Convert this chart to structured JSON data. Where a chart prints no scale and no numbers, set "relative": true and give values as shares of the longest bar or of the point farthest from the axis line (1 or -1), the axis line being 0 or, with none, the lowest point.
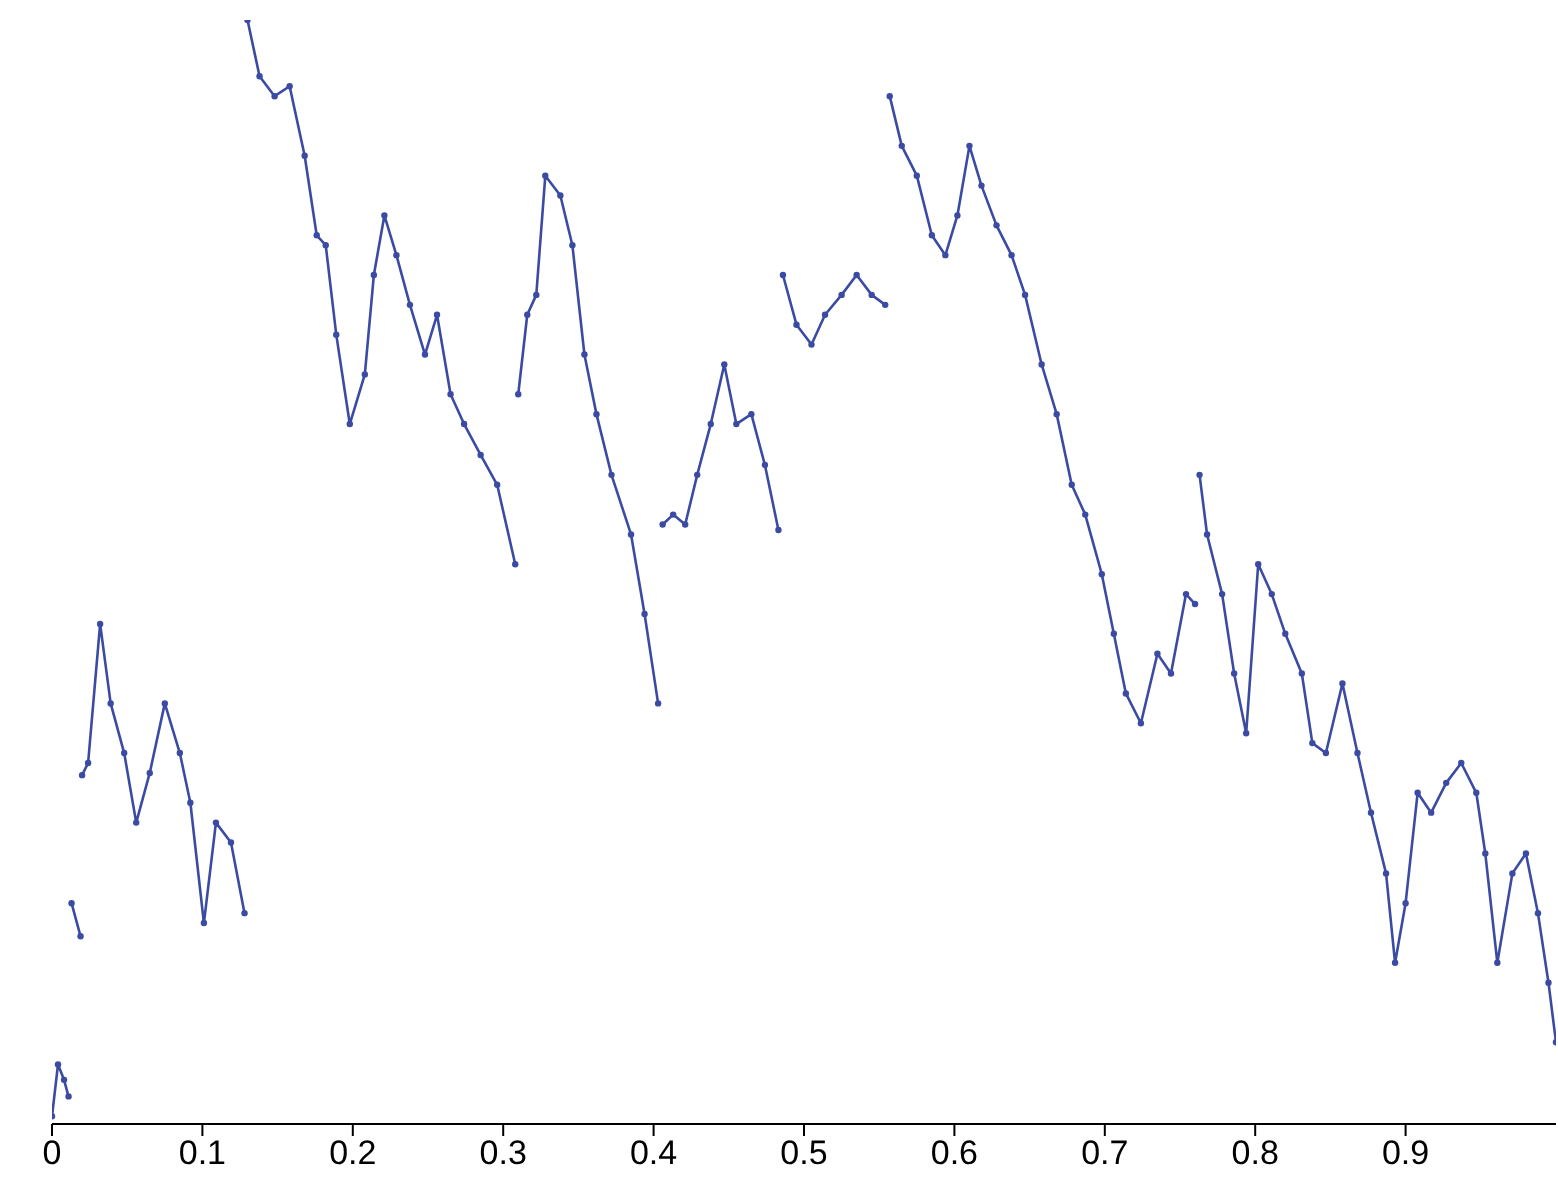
{
  "chart_data": {
    "type": "line",
    "relative": true,
    "xlim": [
      0,
      1
    ],
    "xticks": [
      0,
      0.1,
      0.2,
      0.3,
      0.4,
      0.5,
      0.6,
      0.7,
      0.8,
      0.9
    ],
    "grid": false,
    "legend": false,
    "marker": "circle",
    "line_style": "solid",
    "x": [
      0,
      0.004,
      0.008,
      0.011,
      0.012,
      0.013,
      0.019,
      0.0195,
      0.02,
      0.024,
      0.032,
      0.039,
      0.048,
      0.056,
      0.065,
      0.075,
      0.085,
      0.092,
      0.101,
      0.109,
      0.119,
      0.128,
      0.129,
      0.13,
      0.138,
      0.148,
      0.158,
      0.168,
      0.176,
      0.182,
      0.189,
      0.198,
      0.208,
      0.214,
      0.221,
      0.229,
      0.238,
      0.248,
      0.256,
      0.265,
      0.274,
      0.285,
      0.296,
      0.308,
      0.309,
      0.31,
      0.316,
      0.322,
      0.328,
      0.338,
      0.346,
      0.354,
      0.362,
      0.372,
      0.385,
      0.394,
      0.403,
      0.404,
      0.406,
      0.413,
      0.421,
      0.429,
      0.438,
      0.447,
      0.455,
      0.465,
      0.474,
      0.483,
      0.484,
      0.486,
      0.495,
      0.505,
      0.514,
      0.525,
      0.535,
      0.545,
      0.554,
      0.555,
      0.557,
      0.565,
      0.575,
      0.585,
      0.594,
      0.602,
      0.61,
      0.618,
      0.628,
      0.638,
      0.647,
      0.658,
      0.668,
      0.678,
      0.687,
      0.698,
      0.706,
      0.714,
      0.724,
      0.735,
      0.744,
      0.754,
      0.76,
      0.761,
      0.763,
      0.768,
      0.778,
      0.786,
      0.794,
      0.802,
      0.811,
      0.82,
      0.831,
      0.838,
      0.847,
      0.858,
      0.868,
      0.877,
      0.887,
      0.893,
      0.9,
      0.908,
      0.917,
      0.927,
      0.937,
      0.947,
      0.953,
      0.961,
      0.971,
      0.98,
      0.988,
      0.995,
      1.0
    ],
    "series": [
      {
        "color": "#3b4ba3",
        "values": [
          0.007,
          0.054,
          0.04,
          0.025,
          null,
          0.2,
          0.17,
          null,
          0.316,
          0.327,
          0.453,
          0.381,
          0.336,
          0.273,
          0.318,
          0.381,
          0.336,
          0.291,
          0.182,
          0.273,
          0.255,
          0.191,
          null,
          1,
          0.949,
          0.931,
          0.94,
          0.877,
          0.805,
          0.796,
          0.715,
          0.634,
          0.679,
          0.769,
          0.823,
          0.787,
          0.742,
          0.697,
          0.733,
          0.661,
          0.634,
          0.606,
          0.579,
          0.507,
          null,
          0.661,
          0.733,
          0.751,
          0.859,
          0.841,
          0.796,
          0.697,
          0.643,
          0.588,
          0.534,
          0.462,
          0.381,
          null,
          0.543,
          0.552,
          0.543,
          0.588,
          0.634,
          0.688,
          0.634,
          0.643,
          0.597,
          0.538,
          null,
          0.769,
          0.724,
          0.706,
          0.733,
          0.751,
          0.769,
          0.751,
          0.742,
          null,
          0.931,
          0.886,
          0.859,
          0.805,
          0.787,
          0.823,
          0.886,
          0.85,
          0.814,
          0.787,
          0.751,
          0.688,
          0.643,
          0.579,
          0.552,
          0.498,
          0.444,
          0.39,
          0.363,
          0.426,
          0.408,
          0.48,
          0.471,
          null,
          0.588,
          0.534,
          0.48,
          0.408,
          0.354,
          0.507,
          0.48,
          0.444,
          0.408,
          0.345,
          0.336,
          0.399,
          0.336,
          0.282,
          0.227,
          0.146,
          0.2,
          0.3,
          0.282,
          0.309,
          0.327,
          0.3,
          0.245,
          0.146,
          0.227,
          0.245,
          0.191,
          0.128,
          0.074
        ]
      }
    ]
  }
}
